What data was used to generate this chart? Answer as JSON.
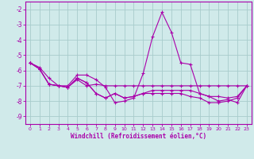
{
  "xlabel": "Windchill (Refroidissement éolien,°C)",
  "background_color": "#d0eaea",
  "grid_color": "#a8cccc",
  "line_color": "#aa00aa",
  "x_values": [
    0,
    1,
    2,
    3,
    4,
    5,
    6,
    7,
    8,
    9,
    10,
    11,
    12,
    13,
    14,
    15,
    16,
    17,
    18,
    19,
    20,
    21,
    22,
    23
  ],
  "series1": [
    -5.5,
    -5.8,
    -6.5,
    -7.0,
    -7.0,
    -6.3,
    -6.3,
    -6.6,
    -7.1,
    -8.1,
    -8.0,
    -7.8,
    -6.2,
    -3.8,
    -2.2,
    -3.5,
    -5.5,
    -5.6,
    -7.5,
    -7.7,
    -8.0,
    -7.9,
    -8.1,
    -7.0
  ],
  "series2": [
    -5.5,
    -5.9,
    -6.9,
    -7.0,
    -7.1,
    -6.6,
    -7.0,
    -6.9,
    -7.0,
    -7.0,
    -7.0,
    -7.0,
    -7.0,
    -7.0,
    -7.0,
    -7.0,
    -7.0,
    -7.0,
    -7.0,
    -7.0,
    -7.0,
    -7.0,
    -7.0,
    -7.0
  ],
  "series3": [
    -5.5,
    -5.9,
    -6.9,
    -7.0,
    -7.1,
    -6.5,
    -6.8,
    -7.5,
    -7.8,
    -7.5,
    -7.8,
    -7.7,
    -7.5,
    -7.3,
    -7.3,
    -7.3,
    -7.3,
    -7.3,
    -7.5,
    -7.7,
    -7.7,
    -7.8,
    -7.7,
    -7.0
  ],
  "series4": [
    -5.5,
    -5.9,
    -6.9,
    -7.0,
    -7.1,
    -6.5,
    -6.8,
    -7.5,
    -7.8,
    -7.5,
    -7.8,
    -7.7,
    -7.5,
    -7.5,
    -7.5,
    -7.5,
    -7.5,
    -7.7,
    -7.8,
    -8.1,
    -8.1,
    -8.0,
    -7.8,
    -7.0
  ],
  "ylim": [
    -9.5,
    -1.5
  ],
  "yticks": [
    -9,
    -8,
    -7,
    -6,
    -5,
    -4,
    -3,
    -2
  ],
  "xlim": [
    -0.5,
    23.5
  ],
  "xtick_fontsize": 4.5,
  "ytick_fontsize": 5.5,
  "xlabel_fontsize": 5.5
}
